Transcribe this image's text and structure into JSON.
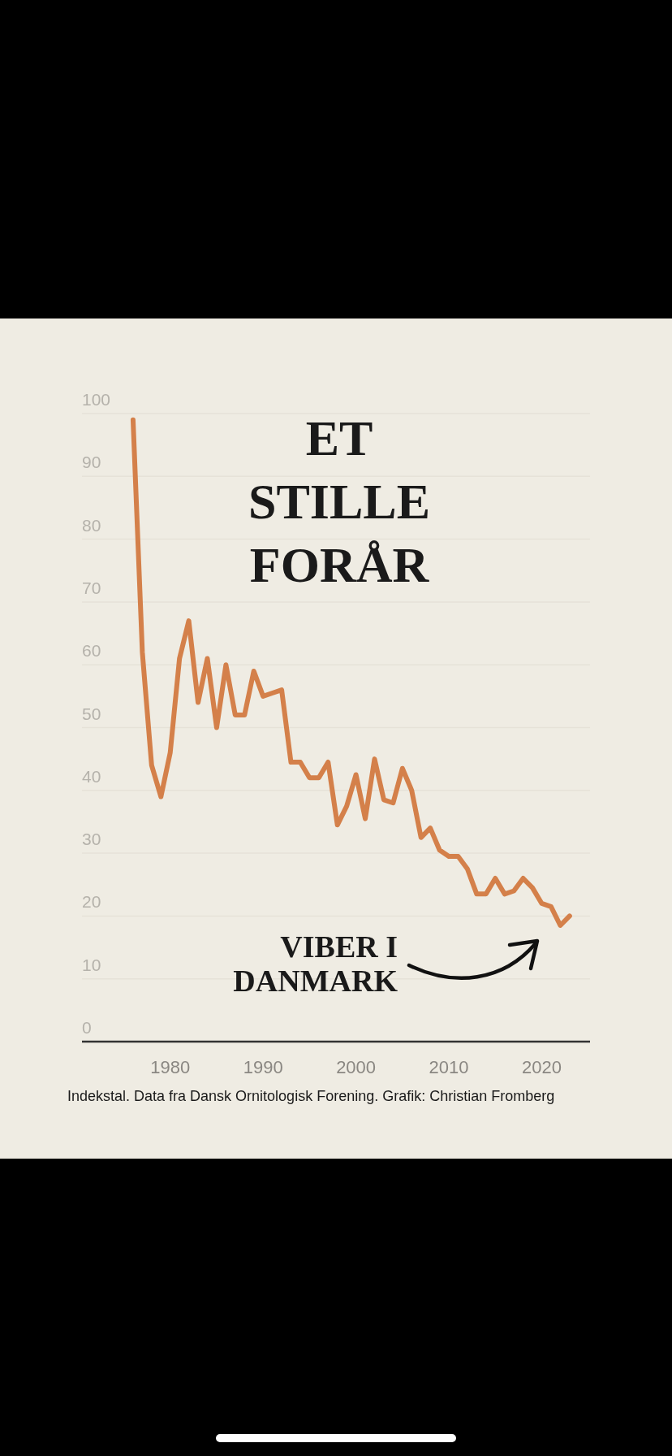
{
  "chart_data": {
    "type": "line",
    "title": "ET STILLE FORÅR",
    "annotations": [
      "VIBER I DANMARK",
      "Indekstal. Data fra Dansk Ornitologisk Forening. Grafik: Christian Fromberg"
    ],
    "x": [
      1976,
      1977,
      1978,
      1979,
      1980,
      1981,
      1982,
      1983,
      1984,
      1985,
      1986,
      1987,
      1988,
      1989,
      1990,
      1991,
      1992,
      1993,
      1994,
      1995,
      1996,
      1997,
      1998,
      1999,
      2000,
      2001,
      2002,
      2003,
      2004,
      2005,
      2006,
      2007,
      2008,
      2009,
      2010,
      2011,
      2012,
      2013,
      2014,
      2015,
      2016,
      2017,
      2018,
      2019,
      2020,
      2021,
      2022,
      2023
    ],
    "series": [
      {
        "color": "#d4804a",
        "values": [
          99,
          62,
          44,
          39,
          46,
          61,
          67,
          54,
          61,
          50,
          60,
          52,
          52,
          59,
          55,
          55.5,
          56,
          44.5,
          44.5,
          42,
          42,
          44.5,
          34.5,
          37.5,
          42.5,
          35.5,
          45,
          38.5,
          38,
          43.5,
          40,
          32.5,
          34,
          30.5,
          29.5,
          29.5,
          27.5,
          23.5,
          23.5,
          26,
          23.5,
          24,
          26,
          24.5,
          22,
          21.5,
          18.5,
          20
        ]
      }
    ],
    "xlim": [
      1970.5,
      2025.2
    ],
    "xticks": [
      1980,
      1990,
      2000,
      2010,
      2020
    ],
    "ylim": [
      0,
      100
    ],
    "yticks": [
      0,
      10,
      20,
      30,
      40,
      50,
      60,
      70,
      80,
      90,
      100
    ],
    "grid": "y",
    "marker": "none",
    "line_style": "solid"
  }
}
